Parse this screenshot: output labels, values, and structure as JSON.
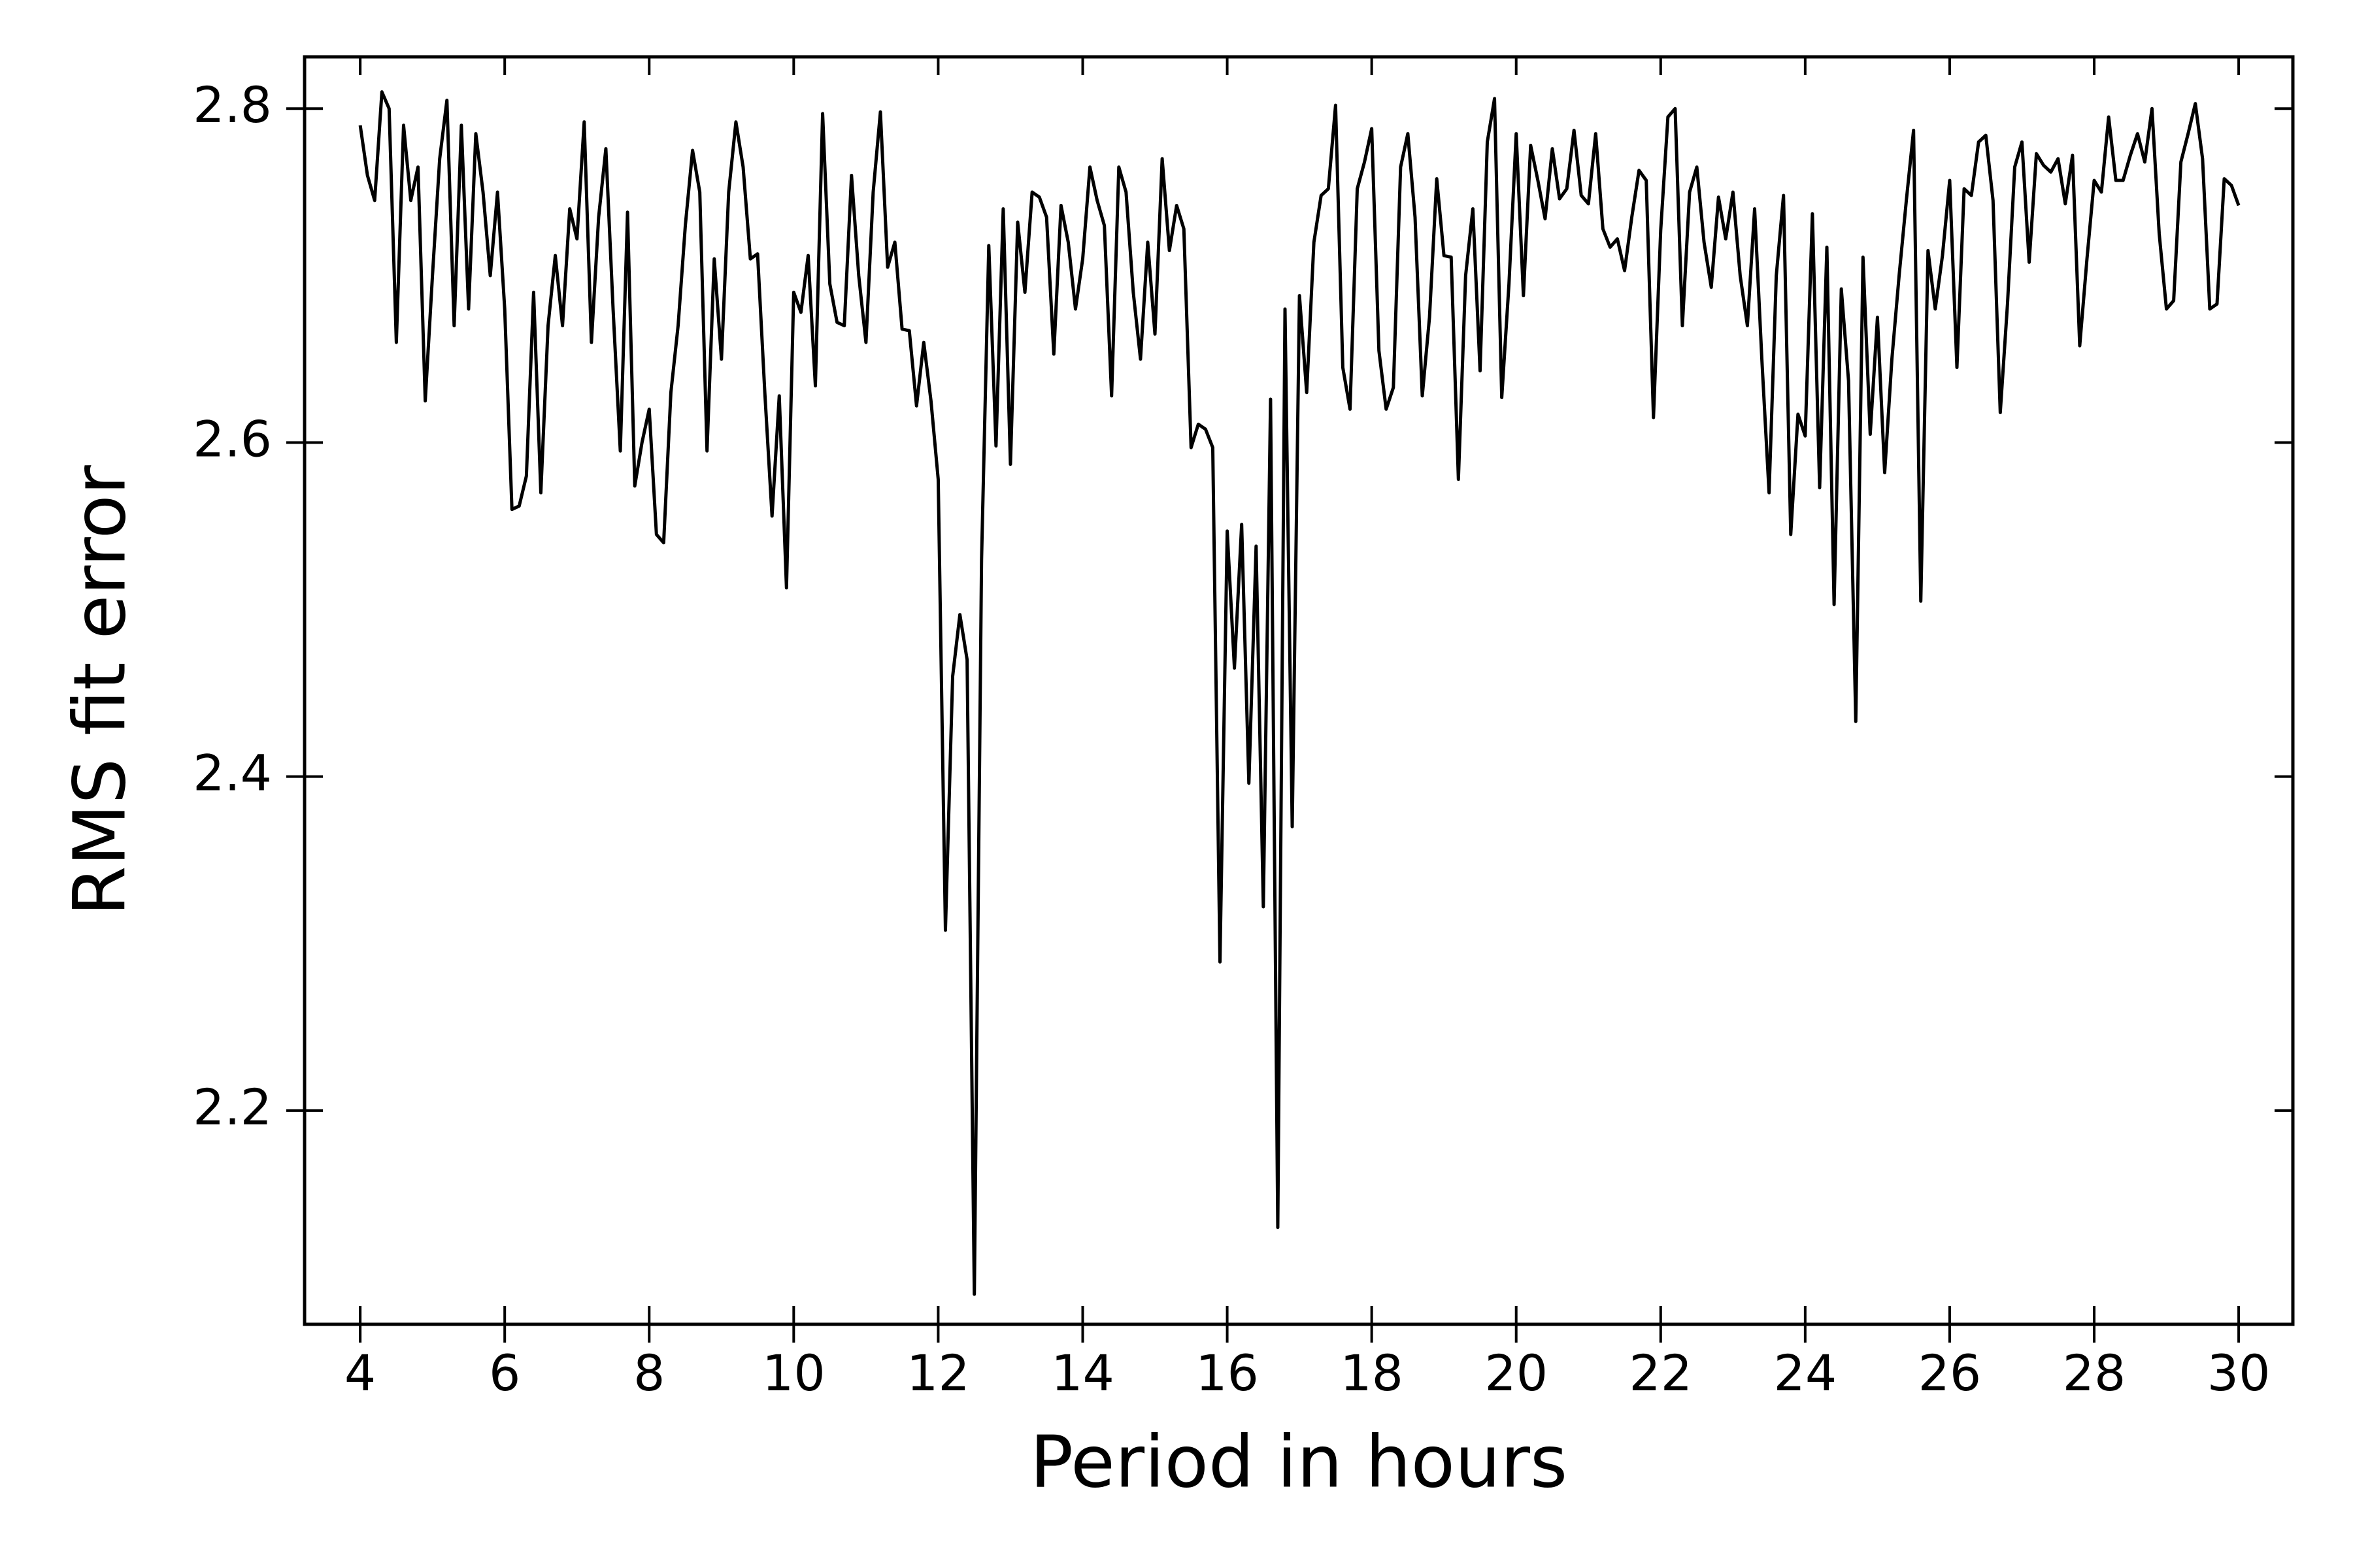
{
  "chart_data": {
    "type": "line",
    "xlabel": "Period in hours",
    "ylabel": "RMS fit error",
    "color": "#000000",
    "xlim": [
      3.23,
      30.75
    ],
    "ylim": [
      2.072,
      2.831
    ],
    "xticks": [
      4,
      6,
      8,
      10,
      12,
      14,
      16,
      18,
      20,
      22,
      24,
      26,
      28,
      30
    ],
    "yticks": [
      2.2,
      2.4,
      2.6,
      2.8
    ],
    "x": [
      4,
      4.1,
      4.2,
      4.3,
      4.4,
      4.5,
      4.6,
      4.7,
      4.8,
      4.9,
      5,
      5.1,
      5.2,
      5.3,
      5.4,
      5.5,
      5.6,
      5.7,
      5.8,
      5.9,
      6,
      6.1,
      6.2,
      6.3,
      6.4,
      6.5,
      6.6,
      6.7,
      6.8,
      6.9,
      7,
      7.1,
      7.2,
      7.3,
      7.4,
      7.5,
      7.6,
      7.7,
      7.8,
      7.9,
      8,
      8.1,
      8.2,
      8.3,
      8.4,
      8.5,
      8.6,
      8.7,
      8.8,
      8.9,
      9,
      9.1,
      9.2,
      9.3,
      9.4,
      9.5,
      9.6,
      9.7,
      9.8,
      9.9,
      10,
      10.1,
      10.2,
      10.3,
      10.4,
      10.5,
      10.6,
      10.7,
      10.8,
      10.9,
      11,
      11.1,
      11.2,
      11.3,
      11.4,
      11.5,
      11.6,
      11.7,
      11.8,
      11.9,
      12,
      12.1,
      12.2,
      12.3,
      12.4,
      12.5,
      12.6,
      12.7,
      12.8,
      12.9,
      13,
      13.1,
      13.2,
      13.3,
      13.4,
      13.5,
      13.6,
      13.7,
      13.8,
      13.9,
      14,
      14.1,
      14.2,
      14.3,
      14.4,
      14.5,
      14.6,
      14.7,
      14.8,
      14.9,
      15,
      15.1,
      15.2,
      15.3,
      15.4,
      15.5,
      15.6,
      15.7,
      15.8,
      15.9,
      16,
      16.1,
      16.2,
      16.3,
      16.4,
      16.5,
      16.6,
      16.7,
      16.8,
      16.9,
      17,
      17.1,
      17.2,
      17.3,
      17.4,
      17.5,
      17.6,
      17.7,
      17.8,
      17.9,
      18,
      18.1,
      18.2,
      18.3,
      18.4,
      18.5,
      18.6,
      18.7,
      18.8,
      18.9,
      19,
      19.1,
      19.2,
      19.3,
      19.4,
      19.5,
      19.6,
      19.7,
      19.8,
      19.9,
      20,
      20.1,
      20.2,
      20.3,
      20.4,
      20.5,
      20.6,
      20.7,
      20.8,
      20.9,
      21,
      21.1,
      21.2,
      21.3,
      21.4,
      21.5,
      21.6,
      21.7,
      21.8,
      21.9,
      22,
      22.1,
      22.2,
      22.3,
      22.4,
      22.5,
      22.6,
      22.7,
      22.8,
      22.9,
      23,
      23.1,
      23.2,
      23.3,
      23.4,
      23.5,
      23.6,
      23.7,
      23.8,
      23.9,
      24,
      24.1,
      24.2,
      24.3,
      24.4,
      24.5,
      24.6,
      24.7,
      24.8,
      24.9,
      25,
      25.1,
      25.2,
      25.3,
      25.4,
      25.5,
      25.6,
      25.7,
      25.8,
      25.9,
      26,
      26.1,
      26.2,
      26.3,
      26.4,
      26.5,
      26.6,
      26.7,
      26.8,
      26.9,
      27,
      27.1,
      27.2,
      27.3,
      27.4,
      27.5,
      27.6,
      27.7,
      27.8,
      27.9,
      28,
      28.1,
      28.2,
      28.3,
      28.4,
      28.5,
      28.6,
      28.7,
      28.8,
      28.9,
      29,
      29.1,
      29.2,
      29.3,
      29.4,
      29.5,
      29.6,
      29.7,
      29.8,
      29.9,
      30
    ],
    "values": [
      2.79,
      2.76,
      2.745,
      2.81,
      2.8,
      2.66,
      2.79,
      2.745,
      2.765,
      2.625,
      2.7,
      2.77,
      2.805,
      2.67,
      2.79,
      2.68,
      2.785,
      2.75,
      2.7,
      2.75,
      2.68,
      2.56,
      2.562,
      2.58,
      2.69,
      2.57,
      2.67,
      2.712,
      2.67,
      2.74,
      2.722,
      2.792,
      2.66,
      2.735,
      2.776,
      2.68,
      2.595,
      2.738,
      2.574,
      2.6,
      2.62,
      2.545,
      2.54,
      2.63,
      2.67,
      2.73,
      2.775,
      2.75,
      2.595,
      2.71,
      2.65,
      2.75,
      2.792,
      2.765,
      2.71,
      2.713,
      2.63,
      2.556,
      2.628,
      2.513,
      2.69,
      2.678,
      2.712,
      2.634,
      2.797,
      2.695,
      2.672,
      2.67,
      2.76,
      2.7,
      2.66,
      2.75,
      2.798,
      2.705,
      2.72,
      2.668,
      2.667,
      2.622,
      2.66,
      2.625,
      2.578,
      2.308,
      2.46,
      2.497,
      2.47,
      2.09,
      2.53,
      2.718,
      2.598,
      2.74,
      2.587,
      2.732,
      2.69,
      2.75,
      2.747,
      2.735,
      2.653,
      2.742,
      2.72,
      2.68,
      2.71,
      2.765,
      2.745,
      2.73,
      2.628,
      2.765,
      2.75,
      2.69,
      2.65,
      2.72,
      2.665,
      2.77,
      2.715,
      2.742,
      2.728,
      2.597,
      2.611,
      2.608,
      2.597,
      2.289,
      2.547,
      2.465,
      2.551,
      2.396,
      2.538,
      2.322,
      2.626,
      2.13,
      2.68,
      2.37,
      2.688,
      2.63,
      2.72,
      2.748,
      2.752,
      2.802,
      2.645,
      2.62,
      2.752,
      2.768,
      2.788,
      2.655,
      2.62,
      2.633,
      2.765,
      2.785,
      2.735,
      2.628,
      2.675,
      2.758,
      2.712,
      2.711,
      2.578,
      2.7,
      2.74,
      2.643,
      2.78,
      2.806,
      2.627,
      2.695,
      2.785,
      2.688,
      2.778,
      2.757,
      2.734,
      2.776,
      2.746,
      2.752,
      2.787,
      2.748,
      2.743,
      2.785,
      2.728,
      2.717,
      2.722,
      2.703,
      2.735,
      2.763,
      2.757,
      2.615,
      2.727,
      2.795,
      2.8,
      2.67,
      2.75,
      2.765,
      2.72,
      2.693,
      2.747,
      2.722,
      2.75,
      2.7,
      2.67,
      2.74,
      2.65,
      2.57,
      2.7,
      2.748,
      2.545,
      2.617,
      2.604,
      2.737,
      2.573,
      2.717,
      2.503,
      2.692,
      2.637,
      2.433,
      2.711,
      2.605,
      2.675,
      2.582,
      2.65,
      2.7,
      2.745,
      2.787,
      2.505,
      2.715,
      2.68,
      2.712,
      2.757,
      2.645,
      2.752,
      2.748,
      2.78,
      2.784,
      2.745,
      2.618,
      2.683,
      2.765,
      2.78,
      2.708,
      2.773,
      2.766,
      2.762,
      2.77,
      2.743,
      2.772,
      2.658,
      2.71,
      2.757,
      2.75,
      2.795,
      2.757,
      2.757,
      2.772,
      2.785,
      2.768,
      2.8,
      2.725,
      2.68,
      2.685,
      2.768,
      2.785,
      2.803,
      2.77,
      2.68,
      2.683,
      2.758,
      2.754,
      2.742
    ]
  }
}
